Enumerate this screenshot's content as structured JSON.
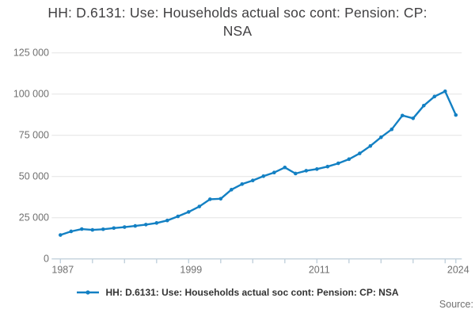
{
  "title_lines": {
    "line1": "HH: D.6131: Use: Households actual soc cont: Pension: CP:",
    "line2": "NSA"
  },
  "legend": {
    "label": "HH: D.6131: Use: Households actual soc cont: Pension: CP: NSA"
  },
  "source_label": "Source:",
  "colors": {
    "line": "#1380c3",
    "marker": "#1380c3",
    "grid": "#e4e4e4",
    "axis": "#c2d1dc",
    "title_text": "#414042",
    "tick_text": "#707070"
  },
  "chart_data": {
    "type": "line",
    "title": "HH: D.6131: Use: Households actual soc cont: Pension: CP: NSA",
    "xlabel": "",
    "ylabel": "",
    "ylim": [
      0,
      125000
    ],
    "ytick_values": [
      0,
      25000,
      50000,
      75000,
      100000,
      125000
    ],
    "ytick_labels": [
      "0",
      "25 000",
      "50 000",
      "75 000",
      "100 000",
      "125 000"
    ],
    "xtick_step_years": 3,
    "labeled_years": [
      1987,
      1999,
      2011,
      2024
    ],
    "xtick_labels": [
      "1987",
      "1999",
      "2011",
      "2024"
    ],
    "grid": "horizontal",
    "legend_position": "bottom",
    "marker": "circle",
    "x": [
      1987,
      1988,
      1989,
      1990,
      1991,
      1992,
      1993,
      1994,
      1995,
      1996,
      1997,
      1998,
      1999,
      2000,
      2001,
      2002,
      2003,
      2004,
      2005,
      2006,
      2007,
      2008,
      2009,
      2010,
      2011,
      2012,
      2013,
      2014,
      2015,
      2016,
      2017,
      2018,
      2019,
      2020,
      2021,
      2022,
      2023,
      2024
    ],
    "series": [
      {
        "name": "HH: D.6131: Use: Households actual soc cont: Pension: CP: NSA",
        "values": [
          14500,
          16700,
          18100,
          17600,
          18000,
          18700,
          19300,
          20000,
          20800,
          21800,
          23300,
          25800,
          28500,
          31800,
          36200,
          36500,
          42000,
          45400,
          47600,
          50200,
          52400,
          55500,
          51800,
          53500,
          54500,
          56000,
          58000,
          60500,
          64000,
          68500,
          73800,
          78600,
          87000,
          85300,
          93000,
          98500,
          101700,
          87300
        ]
      }
    ]
  }
}
